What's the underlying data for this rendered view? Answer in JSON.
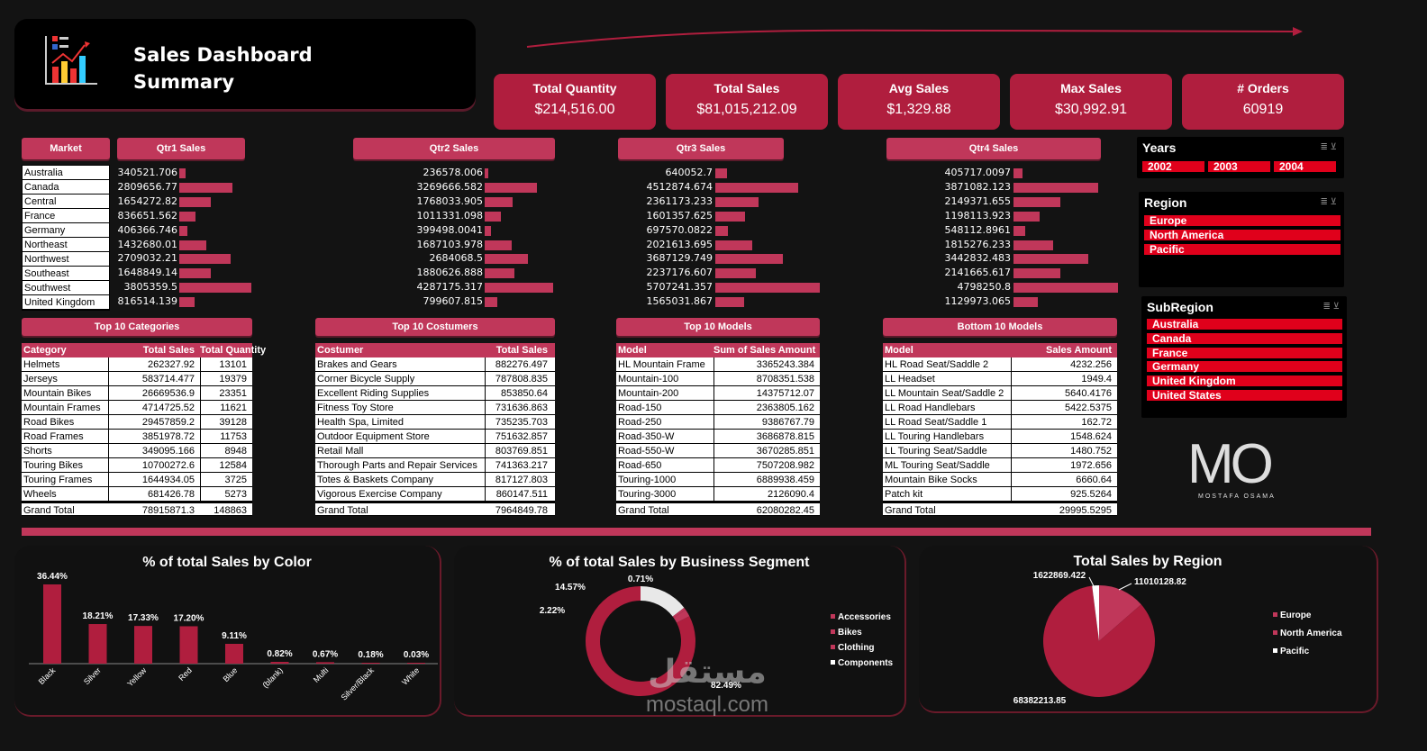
{
  "header": {
    "title_line1": "Sales Dashboard",
    "title_line2": "Summary"
  },
  "kpis": [
    {
      "label": "Total Quantity",
      "value": "$214,516.00"
    },
    {
      "label": "Total Sales",
      "value": "$81,015,212.09"
    },
    {
      "label": "Avg Sales",
      "value": "$1,329.88"
    },
    {
      "label": "Max Sales",
      "value": "$30,992.91"
    },
    {
      "label": "# Orders",
      "value": "60919"
    }
  ],
  "quarters": {
    "market_header": "Market",
    "markets": [
      "Australia",
      "Canada",
      "Central",
      "France",
      "Germany",
      "Northeast",
      "Northwest",
      "Southeast",
      "Southwest",
      "United Kingdom"
    ],
    "q1": {
      "header": "Qtr1 Sales",
      "values": [
        "340521.706",
        "2809656.77",
        "1654272.82",
        "836651.562",
        "406366.746",
        "1432680.01",
        "2709032.21",
        "1648849.14",
        "3805359.5",
        "816514.139"
      ],
      "nums": [
        340521.706,
        2809656.77,
        1654272.82,
        836651.562,
        406366.746,
        1432680.01,
        2709032.21,
        1648849.14,
        3805359.5,
        816514.139
      ]
    },
    "q2": {
      "header": "Qtr2 Sales",
      "values": [
        "236578.006",
        "3269666.582",
        "1768033.905",
        "1011331.098",
        "399498.0041",
        "1687103.978",
        "2684068.5",
        "1880626.888",
        "4287175.317",
        "799607.815"
      ],
      "nums": [
        236578.006,
        3269666.582,
        1768033.905,
        1011331.098,
        399498.0041,
        1687103.978,
        2684068.5,
        1880626.888,
        4287175.317,
        799607.815
      ]
    },
    "q3": {
      "header": "Qtr3 Sales",
      "values": [
        "640052.7",
        "4512874.674",
        "2361173.233",
        "1601357.625",
        "697570.0822",
        "2021613.695",
        "3687129.749",
        "2237176.607",
        "5707241.357",
        "1565031.867"
      ],
      "nums": [
        640052.7,
        4512874.674,
        2361173.233,
        1601357.625,
        697570.0822,
        2021613.695,
        3687129.749,
        2237176.607,
        5707241.357,
        1565031.867
      ]
    },
    "q4": {
      "header": "Qtr4 Sales",
      "values": [
        "405717.0097",
        "3871082.123",
        "2149371.655",
        "1198113.923",
        "548112.8961",
        "1815276.233",
        "3442832.483",
        "2141665.617",
        "4798250.8",
        "1129973.065"
      ],
      "nums": [
        405717.0097,
        3871082.123,
        2149371.655,
        1198113.923,
        548112.8961,
        1815276.233,
        3442832.483,
        2141665.617,
        4798250.8,
        1129973.065
      ]
    }
  },
  "top_categories": {
    "title": "Top 10 Categories",
    "columns": [
      "Category",
      "Total Sales",
      "Total Quantity"
    ],
    "rows": [
      [
        "Helmets",
        "262327.92",
        "13101"
      ],
      [
        "Jerseys",
        "583714.477",
        "19379"
      ],
      [
        "Mountain Bikes",
        "26669536.9",
        "23351"
      ],
      [
        "Mountain Frames",
        "4714725.52",
        "11621"
      ],
      [
        "Road Bikes",
        "29457859.2",
        "39128"
      ],
      [
        "Road Frames",
        "3851978.72",
        "11753"
      ],
      [
        "Shorts",
        "349095.166",
        "8948"
      ],
      [
        "Touring Bikes",
        "10700272.6",
        "12584"
      ],
      [
        "Touring Frames",
        "1644934.05",
        "3725"
      ],
      [
        "Wheels",
        "681426.78",
        "5273"
      ]
    ],
    "total": [
      "Grand Total",
      "78915871.3",
      "148863"
    ]
  },
  "top_customers": {
    "title": "Top 10 Costumers",
    "columns": [
      "Costumer",
      "Total Sales"
    ],
    "rows": [
      [
        "Brakes and Gears",
        "882276.497"
      ],
      [
        "Corner Bicycle Supply",
        "787808.835"
      ],
      [
        "Excellent Riding Supplies",
        "853850.64"
      ],
      [
        "Fitness Toy Store",
        "731636.863"
      ],
      [
        "Health Spa, Limited",
        "735235.703"
      ],
      [
        "Outdoor Equipment Store",
        "751632.857"
      ],
      [
        "Retail Mall",
        "803769.851"
      ],
      [
        "Thorough Parts and Repair Services",
        "741363.217"
      ],
      [
        "Totes & Baskets Company",
        "817127.803"
      ],
      [
        "Vigorous Exercise Company",
        "860147.511"
      ]
    ],
    "total": [
      "Grand Total",
      "7964849.78"
    ]
  },
  "top_models": {
    "title": "Top 10 Models",
    "columns": [
      "Model",
      "Sum of Sales Amount"
    ],
    "rows": [
      [
        "HL Mountain Frame",
        "3365243.384"
      ],
      [
        "Mountain-100",
        "8708351.538"
      ],
      [
        "Mountain-200",
        "14375712.07"
      ],
      [
        "Road-150",
        "2363805.162"
      ],
      [
        "Road-250",
        "9386767.79"
      ],
      [
        "Road-350-W",
        "3686878.815"
      ],
      [
        "Road-550-W",
        "3670285.851"
      ],
      [
        "Road-650",
        "7507208.982"
      ],
      [
        "Touring-1000",
        "6889938.459"
      ],
      [
        "Touring-3000",
        "2126090.4"
      ]
    ],
    "total": [
      "Grand Total",
      "62080282.45"
    ]
  },
  "bottom_models": {
    "title": "Bottom 10 Models",
    "columns": [
      "Model",
      "Sales Amount"
    ],
    "rows": [
      [
        "HL Road Seat/Saddle 2",
        "4232.256"
      ],
      [
        "LL Headset",
        "1949.4"
      ],
      [
        "LL Mountain Seat/Saddle 2",
        "5640.4176"
      ],
      [
        "LL Road Handlebars",
        "5422.5375"
      ],
      [
        "LL Road Seat/Saddle 1",
        "162.72"
      ],
      [
        "LL Touring Handlebars",
        "1548.624"
      ],
      [
        "LL Touring Seat/Saddle",
        "1480.752"
      ],
      [
        "ML Touring Seat/Saddle",
        "1972.656"
      ],
      [
        "Mountain Bike Socks",
        "6660.64"
      ],
      [
        "Patch kit",
        "925.5264"
      ]
    ],
    "total": [
      "Grand Total",
      "29995.5295"
    ]
  },
  "slicers": {
    "years": {
      "title": "Years",
      "items": [
        "2002",
        "2003",
        "2004"
      ]
    },
    "region": {
      "title": "Region",
      "items": [
        "Europe",
        "North America",
        "Pacific"
      ]
    },
    "subregion": {
      "title": "SubRegion",
      "items": [
        "Australia",
        "Canada",
        "France",
        "Germany",
        "United Kingdom",
        "United States"
      ]
    }
  },
  "logo": {
    "letters": "MO",
    "name": "MOSTAFA OSAMA"
  },
  "watermark": {
    "arabic": "مستقل",
    "latin": "mostaql.com"
  },
  "colors": {
    "accent": "#c0375a",
    "kpi": "#b01e3e",
    "chip": "#e0001b",
    "bg": "#131313"
  },
  "chart_data": [
    {
      "type": "bar",
      "title": "% of total Sales by Color",
      "categories": [
        "Black",
        "Silver",
        "Yellow",
        "Red",
        "Blue",
        "(blank)",
        "Multi",
        "Silver/Black",
        "White"
      ],
      "values": [
        36.44,
        18.21,
        17.33,
        17.2,
        9.11,
        0.82,
        0.67,
        0.18,
        0.03
      ],
      "labels": [
        "36.44%",
        "18.21%",
        "17.33%",
        "17.20%",
        "9.11%",
        "0.82%",
        "0.67%",
        "0.18%",
        "0.03%"
      ]
    },
    {
      "type": "pie",
      "title": "% of total Sales by Business Segment",
      "categories": [
        "Accessories",
        "Bikes",
        "Clothing",
        "Components"
      ],
      "values": [
        2.22,
        82.49,
        0.71,
        14.57
      ],
      "labels": [
        "2.22%",
        "82.49%",
        "0.71%",
        "14.57%"
      ],
      "legend": "right"
    },
    {
      "type": "pie",
      "title": "Total Sales by Region",
      "categories": [
        "Europe",
        "North America",
        "Pacific"
      ],
      "values": [
        11010128.82,
        68382213.85,
        1622869.422
      ],
      "labels": [
        "11010128.82",
        "68382213.85",
        "1622869.422"
      ],
      "legend": "right"
    }
  ]
}
